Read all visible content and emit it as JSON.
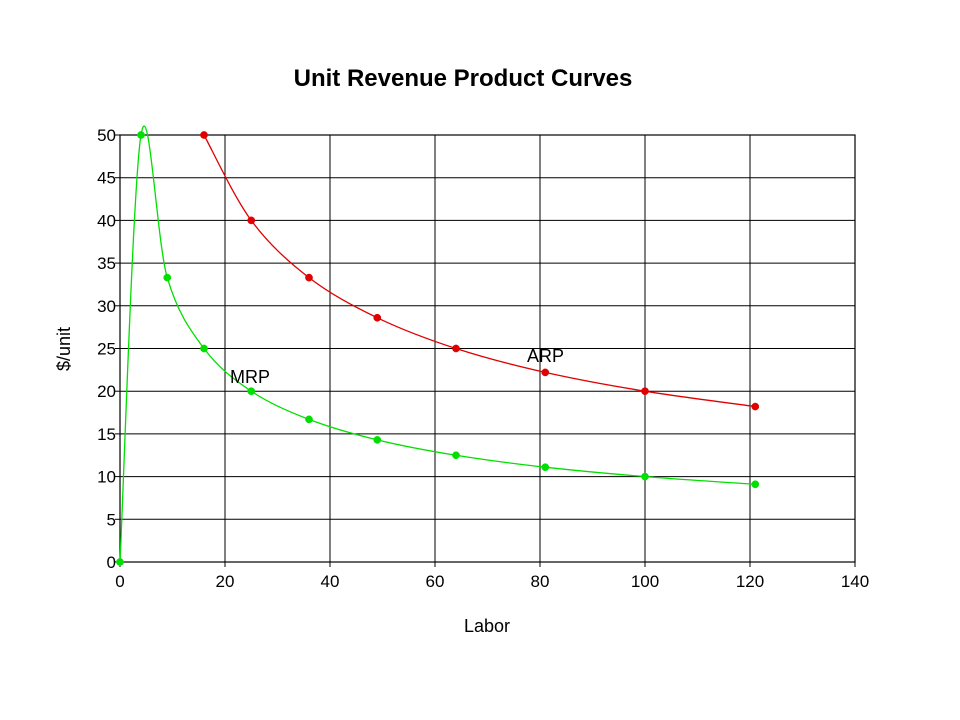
{
  "chart_data": {
    "type": "scatter",
    "title": "Unit Revenue Product Curves",
    "xlabel": "Labor",
    "ylabel": "$/unit",
    "xlim": [
      0,
      140
    ],
    "ylim": [
      0,
      50
    ],
    "x_ticks": [
      0,
      20,
      40,
      60,
      80,
      100,
      120,
      140
    ],
    "y_ticks": [
      0,
      5,
      10,
      15,
      20,
      25,
      30,
      35,
      40,
      45,
      50
    ],
    "grid": true,
    "lines": "smoothed lines with markers",
    "series": [
      {
        "name": "ARP",
        "color": "#e00000",
        "x": [
          16,
          25,
          36,
          49,
          64,
          81,
          100,
          121
        ],
        "y": [
          50,
          40,
          33.3,
          28.6,
          25,
          22.2,
          20,
          18.2
        ]
      },
      {
        "name": "MRP",
        "color": "#00e000",
        "x": [
          0,
          4,
          9,
          16,
          25,
          36,
          49,
          64,
          81,
          100,
          121
        ],
        "y": [
          0,
          50,
          33.3,
          25,
          20,
          16.7,
          14.3,
          12.5,
          11.1,
          10,
          9.1
        ]
      }
    ]
  }
}
